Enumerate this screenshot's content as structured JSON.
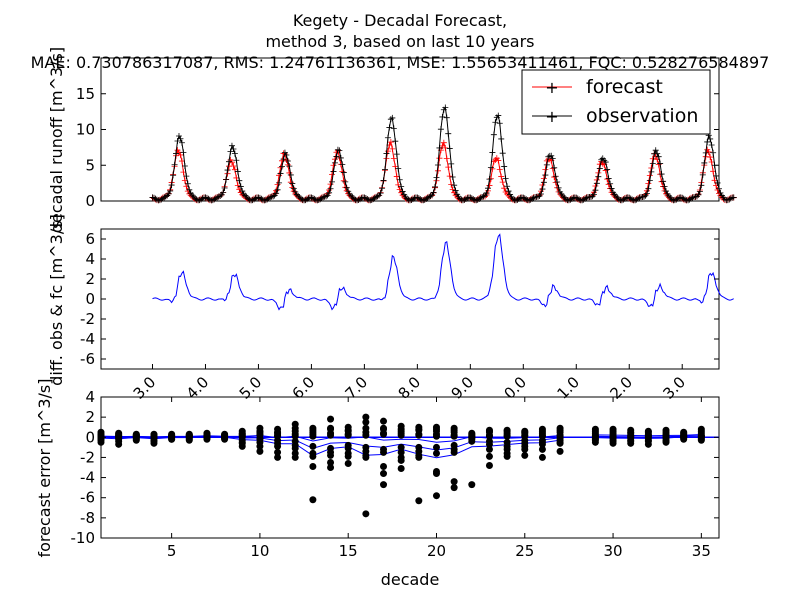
{
  "figure": {
    "title_lines": [
      "Kegety  - Decadal Forecast,",
      "method 3, based on last 10 years",
      "MAE: 0.730786317087,   RMS: 1.24761136361,   MSE: 1.55653411461,   FQC: 0.528276584897"
    ],
    "colors": {
      "forecast": "#ff0000",
      "observation": "#000000",
      "difference": "#0000ff",
      "error_points": "#000000",
      "error_lines": "#0000ff"
    }
  },
  "chart_data": [
    {
      "type": "line",
      "panel": "runoff",
      "ylabel": "decadal runoff [m^3/s]",
      "xlim": [
        0,
        420
      ],
      "ylim": [
        0,
        20
      ],
      "yticks": [
        0,
        5,
        10,
        15
      ],
      "legend_position": "top-right",
      "series": [
        {
          "name": "forecast",
          "color": "#ff0000"
        },
        {
          "name": "observation",
          "color": "#000000"
        }
      ],
      "notes": "11 yearly cycles of 36 decades; obs peaks per year",
      "obs_peaks": [
        9,
        7.5,
        6.5,
        7,
        11.5,
        13,
        12,
        6.5,
        6,
        7,
        9
      ],
      "fc_peaks": [
        7,
        5.5,
        6.5,
        6.8,
        8,
        8,
        6,
        6,
        5.5,
        6.5,
        7
      ]
    },
    {
      "type": "line",
      "panel": "difference",
      "ylabel": "diff. obs & fc [m^3/s]",
      "xlim": [
        0,
        420
      ],
      "ylim": [
        -7,
        7
      ],
      "yticks": [
        -6,
        -4,
        -2,
        0,
        2,
        4,
        6
      ],
      "xtick_labels": [
        "3.0",
        "4.0",
        "5.0",
        "6.0",
        "7.0",
        "8.0",
        "9.0",
        "0.0",
        "1.0",
        "2.0",
        "3.0"
      ],
      "series": [
        {
          "color": "#0000ff"
        }
      ]
    },
    {
      "type": "scatter",
      "panel": "forecast-error",
      "xlabel": "decade",
      "ylabel": "forecast error [m^3/s]",
      "xlim": [
        1,
        36
      ],
      "ylim": [
        -10,
        4
      ],
      "xticks": [
        5,
        10,
        15,
        20,
        25,
        30,
        35
      ],
      "yticks": [
        -10,
        -8,
        -6,
        -4,
        -2,
        0,
        2,
        4
      ],
      "errors_by_decade": [
        [
          0.3,
          0.1,
          -0.1,
          -0.2,
          0.2,
          -0.3,
          0.5,
          0.0,
          -0.5,
          0.2
        ],
        [
          0.4,
          -0.2,
          0.1,
          -0.7,
          0.3,
          0.0,
          -0.4,
          0.2,
          -0.1,
          0.1
        ],
        [
          0.2,
          0.0,
          -0.3,
          0.1,
          0.3,
          -0.1,
          0.2,
          -0.2,
          0.1,
          0.0
        ],
        [
          0.3,
          -0.4,
          0.1,
          -0.6,
          0.2,
          -0.1,
          0.0,
          0.1,
          -0.3,
          0.2
        ],
        [
          0.2,
          0.1,
          -0.2,
          0.0,
          0.3,
          -0.1,
          0.1,
          0.0,
          -0.2,
          0.1
        ],
        [
          0.3,
          -0.3,
          0.1,
          0.0,
          0.2,
          -0.2,
          0.1,
          -0.1,
          0.0,
          0.2
        ],
        [
          0.4,
          -0.1,
          0.2,
          0.0,
          0.3,
          0.1,
          -0.2,
          0.0,
          0.1,
          0.2
        ],
        [
          0.3,
          0.0,
          -0.2,
          0.1,
          0.2,
          -0.1,
          0.0,
          0.2,
          -0.1,
          0.1
        ],
        [
          0.6,
          -0.6,
          0.4,
          -0.9,
          0.2,
          0.0,
          -0.3,
          0.1,
          -0.5,
          0.3
        ],
        [
          0.9,
          -0.9,
          0.5,
          -1.4,
          0.3,
          -0.2,
          0.6,
          -0.1,
          0.2,
          -0.5
        ],
        [
          0.8,
          -1.5,
          0.4,
          -2.0,
          0.2,
          -0.6,
          0.5,
          -0.3,
          0.1,
          -0.9
        ],
        [
          1.3,
          -1.6,
          0.6,
          -2.0,
          0.3,
          -0.8,
          0.9,
          -0.4,
          0.1,
          -1.1
        ],
        [
          0.9,
          -2.9,
          0.5,
          -6.2,
          0.3,
          -0.9,
          0.7,
          -1.9,
          0.1,
          -1.6
        ],
        [
          1.8,
          -2.5,
          0.9,
          -3.0,
          0.4,
          -1.1,
          0.8,
          -1.8,
          0.2,
          -1.5
        ],
        [
          1.0,
          -2.6,
          0.6,
          -1.9,
          0.3,
          -0.8,
          0.7,
          -1.6,
          0.2,
          -1.1
        ],
        [
          2.0,
          -7.6,
          1.5,
          -2.0,
          0.5,
          -1.0,
          0.9,
          -1.8,
          0.2,
          -1.4
        ],
        [
          1.6,
          -4.7,
          0.9,
          -3.6,
          0.4,
          -2.9,
          0.8,
          -1.5,
          0.3,
          -1.2
        ],
        [
          1.1,
          -3.1,
          0.6,
          -2.0,
          0.4,
          -1.5,
          0.8,
          -2.3,
          0.2,
          -1.0
        ],
        [
          1.0,
          -6.3,
          0.7,
          -2.0,
          0.3,
          -1.4,
          0.8,
          -1.8,
          0.2,
          -1.0
        ],
        [
          1.0,
          -3.4,
          0.6,
          -5.8,
          0.3,
          -3.6,
          0.8,
          -1.6,
          0.1,
          -1.0
        ],
        [
          0.9,
          -4.4,
          0.5,
          -5.0,
          0.2,
          -1.5,
          0.7,
          -1.2,
          0.1,
          -0.8
        ],
        [
          0.4,
          -4.7,
          0.2,
          -0.4,
          0.1,
          0.0,
          0.3,
          -0.2,
          0.0,
          -0.1
        ],
        [
          0.7,
          -2.8,
          0.5,
          -1.2,
          0.2,
          -0.7,
          0.6,
          -0.4,
          0.1,
          -1.9
        ],
        [
          0.7,
          -1.9,
          0.4,
          -0.9,
          0.2,
          -0.5,
          0.6,
          -1.6,
          0.1,
          -1.2
        ],
        [
          0.6,
          -1.2,
          0.4,
          -1.8,
          0.2,
          -0.6,
          0.5,
          -0.3,
          0.1,
          -0.9
        ],
        [
          0.8,
          -1.2,
          0.4,
          -2.0,
          0.2,
          -0.5,
          0.6,
          -0.3,
          0.1,
          -0.7
        ],
        [
          0.9,
          -1.4,
          0.5,
          -0.6,
          0.2,
          -0.3,
          0.7,
          -0.1,
          0.1,
          -0.5
        ],
        [],
        [
          0.8,
          -0.2,
          0.4,
          -0.5,
          0.2,
          -0.1,
          0.6,
          0.0,
          0.1,
          -0.3
        ],
        [
          0.8,
          -0.6,
          0.4,
          -0.3,
          0.2,
          -0.1,
          0.6,
          0.0,
          0.1,
          -0.4
        ],
        [
          0.7,
          -0.6,
          0.4,
          -0.3,
          0.2,
          -0.1,
          0.5,
          0.0,
          0.1,
          -0.4
        ],
        [
          0.6,
          -0.7,
          0.3,
          -0.4,
          0.2,
          -0.1,
          0.5,
          0.0,
          0.1,
          -0.3
        ],
        [
          0.7,
          -0.5,
          0.3,
          -0.3,
          0.2,
          -0.1,
          0.5,
          0.0,
          0.1,
          -0.4
        ],
        [
          0.5,
          -0.1,
          0.3,
          0.0,
          0.2,
          0.1,
          0.4,
          0.0,
          0.1,
          -0.2
        ],
        [
          0.8,
          -0.3,
          0.4,
          -0.1,
          0.2,
          0.0,
          0.6,
          0.1,
          0.1,
          -0.2
        ]
      ]
    }
  ]
}
